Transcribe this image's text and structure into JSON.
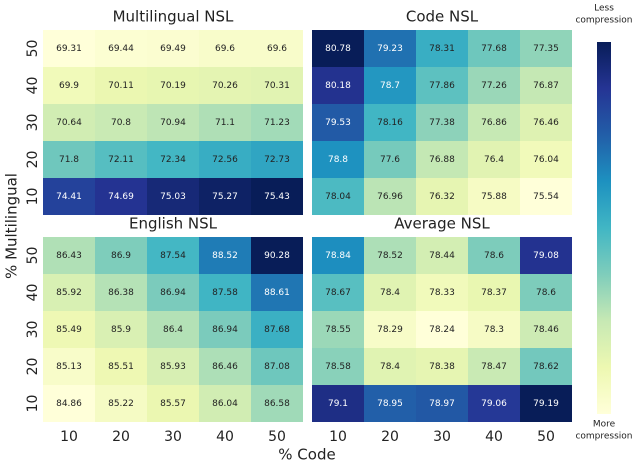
{
  "axes": {
    "xlabel": "% Code",
    "ylabel": "% Multilingual",
    "xcategories": [
      10,
      20,
      30,
      40,
      50
    ],
    "ycategories": [
      50,
      40,
      30,
      20,
      10
    ]
  },
  "colormap": "YlGnBu",
  "colorbar": {
    "top_label": [
      "Less",
      "compression"
    ],
    "bottom_label": [
      "More",
      "compression"
    ]
  },
  "chart_data": [
    {
      "type": "heatmap",
      "title": "Multilingual NSL",
      "values": [
        [
          69.31,
          69.44,
          69.49,
          69.6,
          69.6
        ],
        [
          69.9,
          70.11,
          70.19,
          70.26,
          70.31
        ],
        [
          70.64,
          70.8,
          70.94,
          71.1,
          71.23
        ],
        [
          71.8,
          72.11,
          72.34,
          72.56,
          72.73
        ],
        [
          74.41,
          74.69,
          75.03,
          75.27,
          75.43
        ]
      ]
    },
    {
      "type": "heatmap",
      "title": "Code NSL",
      "values": [
        [
          80.78,
          79.23,
          78.31,
          77.68,
          77.35
        ],
        [
          80.18,
          78.7,
          77.86,
          77.26,
          76.87
        ],
        [
          79.53,
          78.16,
          77.38,
          76.86,
          76.46
        ],
        [
          78.8,
          77.6,
          76.88,
          76.4,
          76.04
        ],
        [
          78.04,
          76.96,
          76.32,
          75.88,
          75.54
        ]
      ]
    },
    {
      "type": "heatmap",
      "title": "English NSL",
      "values": [
        [
          86.43,
          86.9,
          87.54,
          88.52,
          90.28
        ],
        [
          85.92,
          86.38,
          86.94,
          87.58,
          88.61
        ],
        [
          85.49,
          85.9,
          86.4,
          86.94,
          87.68
        ],
        [
          85.13,
          85.51,
          85.93,
          86.46,
          87.08
        ],
        [
          84.86,
          85.22,
          85.57,
          86.04,
          86.58
        ]
      ]
    },
    {
      "type": "heatmap",
      "title": "Average NSL",
      "values": [
        [
          78.84,
          78.52,
          78.44,
          78.6,
          79.08
        ],
        [
          78.67,
          78.4,
          78.33,
          78.37,
          78.6
        ],
        [
          78.55,
          78.29,
          78.24,
          78.3,
          78.46
        ],
        [
          78.58,
          78.4,
          78.38,
          78.47,
          78.62
        ],
        [
          79.1,
          78.95,
          78.97,
          79.06,
          79.19
        ]
      ]
    }
  ]
}
